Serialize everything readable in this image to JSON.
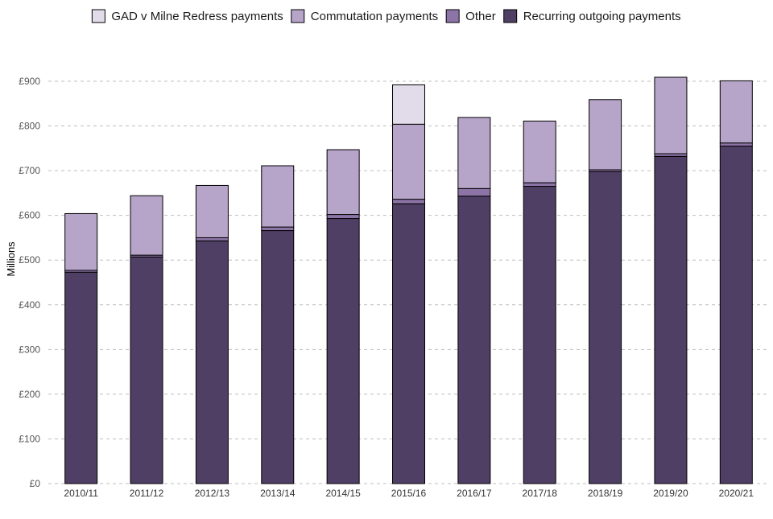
{
  "chart_data": {
    "type": "bar",
    "stacked": true,
    "title": "",
    "xlabel": "",
    "ylabel": "Millions",
    "ylim": [
      0,
      900
    ],
    "yticks": [
      0,
      100,
      200,
      300,
      400,
      500,
      600,
      700,
      800,
      900
    ],
    "ytick_labels": [
      "£0",
      "£100",
      "£200",
      "£300",
      "£400",
      "£500",
      "£600",
      "£700",
      "£800",
      "£900"
    ],
    "grid": true,
    "grid_style": "dashed horizontal",
    "legend_position": "top",
    "categories": [
      "2010/11",
      "2011/12",
      "2012/13",
      "2013/14",
      "2014/15",
      "2015/16",
      "2016/17",
      "2017/18",
      "2018/19",
      "2019/20",
      "2020/21"
    ],
    "legend_order": [
      "GAD v Milne Redress payments",
      "Commutation payments",
      "Other",
      "Recurring outgoing payments"
    ],
    "series": [
      {
        "name": "Recurring outgoing payments",
        "color": "#503f65",
        "values": [
          473,
          507,
          543,
          566,
          593,
          626,
          643,
          665,
          698,
          732,
          755
        ]
      },
      {
        "name": "Other",
        "color": "#8c74a7",
        "values": [
          4,
          4,
          7,
          8,
          9,
          10,
          17,
          8,
          4,
          6,
          7
        ]
      },
      {
        "name": "Commutation payments",
        "color": "#b6a4c9",
        "values": [
          127,
          133,
          117,
          137,
          145,
          168,
          159,
          138,
          157,
          171,
          139
        ]
      },
      {
        "name": "GAD v Milne Redress payments",
        "color": "#e2dbea",
        "values": [
          0,
          0,
          0,
          0,
          0,
          88,
          0,
          0,
          0,
          0,
          0
        ]
      }
    ]
  }
}
